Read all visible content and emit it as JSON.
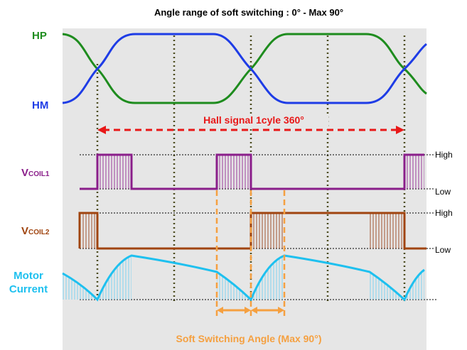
{
  "title": "Angle range of soft switching : 0° -    Max 90°",
  "hall": {
    "hp_label": "HP",
    "hm_label": "HM",
    "cycle_label": "Hall signal   1cyle 360°"
  },
  "coil1": {
    "label_main": "V",
    "label_sub": "COIL1",
    "high": "High",
    "low": "Low"
  },
  "coil2": {
    "label_main": "V",
    "label_sub": "COIL2",
    "high": "High",
    "low": "Low"
  },
  "current": {
    "label_line1": "Motor",
    "label_line2": "Current"
  },
  "footer": "Soft Switching Angle (Max 90°)"
}
